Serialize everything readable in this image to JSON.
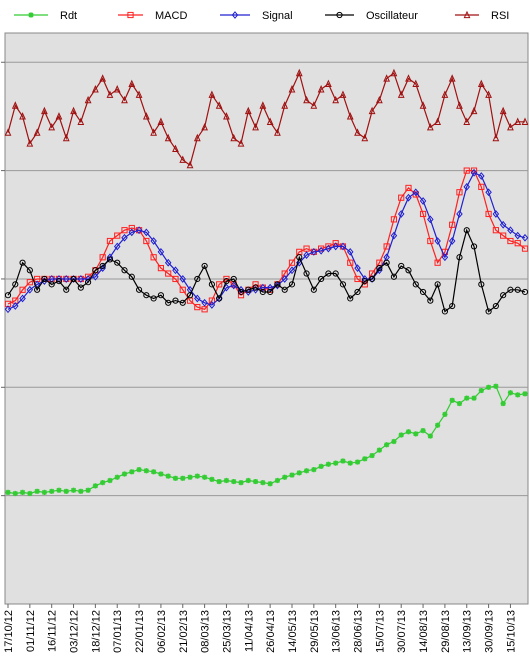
{
  "chart_data": {
    "type": "line",
    "categories": [
      "17/10/12",
      null,
      null,
      "01/11/12",
      null,
      null,
      "16/11/12",
      null,
      null,
      "03/12/12",
      null,
      null,
      "18/12/12",
      null,
      null,
      "07/01/13",
      null,
      null,
      "22/01/13",
      null,
      null,
      "06/02/13",
      null,
      null,
      "21/02/13",
      null,
      null,
      "08/03/13",
      null,
      null,
      "25/03/13",
      null,
      null,
      "11/04/13",
      null,
      null,
      "26/04/13",
      null,
      null,
      "14/05/13",
      null,
      null,
      "29/05/13",
      null,
      null,
      "13/06/13",
      null,
      null,
      "28/06/13",
      null,
      null,
      "15/07/13",
      null,
      null,
      "30/07/13",
      null,
      null,
      "14/08/13",
      null,
      null,
      "29/08/13",
      null,
      null,
      "13/09/13",
      null,
      null,
      "30/09/13",
      null,
      null,
      "15/10/13",
      null,
      null
    ],
    "series": [
      {
        "name": "Rdt",
        "color": "#33cc33",
        "marker": "star",
        "values": [
          0.03,
          0.02,
          0.03,
          0.02,
          0.04,
          0.03,
          0.04,
          0.05,
          0.04,
          0.05,
          0.04,
          0.05,
          0.09,
          0.12,
          0.14,
          0.17,
          0.2,
          0.22,
          0.24,
          0.23,
          0.22,
          0.2,
          0.18,
          0.16,
          0.16,
          0.17,
          0.18,
          0.17,
          0.15,
          0.13,
          0.14,
          0.13,
          0.12,
          0.14,
          0.13,
          0.12,
          0.11,
          0.14,
          0.17,
          0.19,
          0.21,
          0.23,
          0.24,
          0.27,
          0.29,
          0.3,
          0.32,
          0.3,
          0.31,
          0.34,
          0.37,
          0.42,
          0.47,
          0.5,
          0.56,
          0.59,
          0.57,
          0.6,
          0.55,
          0.65,
          0.75,
          0.88,
          0.85,
          0.9,
          0.9,
          0.97,
          1.0,
          1.01,
          0.85,
          0.95,
          0.93,
          0.94
        ]
      },
      {
        "name": "MACD",
        "color": "#ff2020",
        "marker": "square",
        "values": [
          1.77,
          1.8,
          1.9,
          1.97,
          2.0,
          2.0,
          2.0,
          2.0,
          2.0,
          2.0,
          2.0,
          2.02,
          2.08,
          2.2,
          2.35,
          2.4,
          2.45,
          2.47,
          2.45,
          2.35,
          2.2,
          2.1,
          2.05,
          2.0,
          1.9,
          1.8,
          1.74,
          1.72,
          1.8,
          1.95,
          2.0,
          1.95,
          1.85,
          1.9,
          1.95,
          1.92,
          1.9,
          1.95,
          2.05,
          2.15,
          2.25,
          2.28,
          2.25,
          2.28,
          2.3,
          2.33,
          2.3,
          2.15,
          2.0,
          1.95,
          2.05,
          2.15,
          2.3,
          2.55,
          2.75,
          2.84,
          2.78,
          2.6,
          2.35,
          2.15,
          2.25,
          2.5,
          2.8,
          3.0,
          3.0,
          2.85,
          2.6,
          2.45,
          2.4,
          2.35,
          2.33,
          2.28
        ]
      },
      {
        "name": "Signal",
        "color": "#2020d0",
        "marker": "diamond",
        "values": [
          1.72,
          1.75,
          1.82,
          1.9,
          1.95,
          1.98,
          2.0,
          2.0,
          2.0,
          2.0,
          2.0,
          2.0,
          2.02,
          2.1,
          2.2,
          2.3,
          2.38,
          2.43,
          2.45,
          2.43,
          2.35,
          2.25,
          2.15,
          2.08,
          2.0,
          1.9,
          1.82,
          1.78,
          1.76,
          1.82,
          1.92,
          1.94,
          1.9,
          1.88,
          1.9,
          1.92,
          1.92,
          1.94,
          2.0,
          2.08,
          2.15,
          2.22,
          2.25,
          2.26,
          2.28,
          2.3,
          2.3,
          2.25,
          2.1,
          2.0,
          2.0,
          2.08,
          2.2,
          2.4,
          2.6,
          2.75,
          2.8,
          2.72,
          2.55,
          2.35,
          2.2,
          2.35,
          2.6,
          2.85,
          2.98,
          2.95,
          2.8,
          2.6,
          2.5,
          2.45,
          2.4,
          2.38
        ]
      },
      {
        "name": "Oscillateur",
        "color": "#000000",
        "marker": "circle",
        "values": [
          1.85,
          1.95,
          2.15,
          2.08,
          1.9,
          2.0,
          1.95,
          1.98,
          1.9,
          2.0,
          1.92,
          1.97,
          2.08,
          2.12,
          2.18,
          2.15,
          2.08,
          2.02,
          1.9,
          1.85,
          1.82,
          1.85,
          1.78,
          1.8,
          1.78,
          1.85,
          2.0,
          2.12,
          1.95,
          1.82,
          1.98,
          2.0,
          1.88,
          1.9,
          1.92,
          1.88,
          1.88,
          1.95,
          1.9,
          1.95,
          2.2,
          2.05,
          1.9,
          2.0,
          2.05,
          2.05,
          1.95,
          1.82,
          1.88,
          1.98,
          2.0,
          2.1,
          2.15,
          2.02,
          2.12,
          2.08,
          1.95,
          1.88,
          1.8,
          1.95,
          1.7,
          1.75,
          2.2,
          2.45,
          2.3,
          1.95,
          1.7,
          1.75,
          1.85,
          1.9,
          1.9,
          1.88
        ]
      },
      {
        "name": "RSI",
        "color": "#a01010",
        "marker": "triangle",
        "values": [
          3.35,
          3.6,
          3.5,
          3.25,
          3.35,
          3.55,
          3.4,
          3.5,
          3.3,
          3.55,
          3.45,
          3.65,
          3.75,
          3.85,
          3.7,
          3.75,
          3.65,
          3.8,
          3.7,
          3.5,
          3.35,
          3.45,
          3.3,
          3.2,
          3.1,
          3.05,
          3.3,
          3.4,
          3.7,
          3.6,
          3.5,
          3.3,
          3.25,
          3.55,
          3.4,
          3.6,
          3.45,
          3.35,
          3.6,
          3.75,
          3.9,
          3.65,
          3.6,
          3.75,
          3.8,
          3.65,
          3.7,
          3.5,
          3.35,
          3.3,
          3.55,
          3.65,
          3.85,
          3.9,
          3.7,
          3.85,
          3.8,
          3.6,
          3.4,
          3.45,
          3.7,
          3.85,
          3.6,
          3.45,
          3.55,
          3.8,
          3.7,
          3.3,
          3.55,
          3.4,
          3.45,
          3.45
        ]
      }
    ],
    "ylim": [
      -1,
      4.27
    ],
    "yticks": [
      0,
      1,
      2,
      3,
      4
    ],
    "grid": true,
    "legend": "top"
  }
}
